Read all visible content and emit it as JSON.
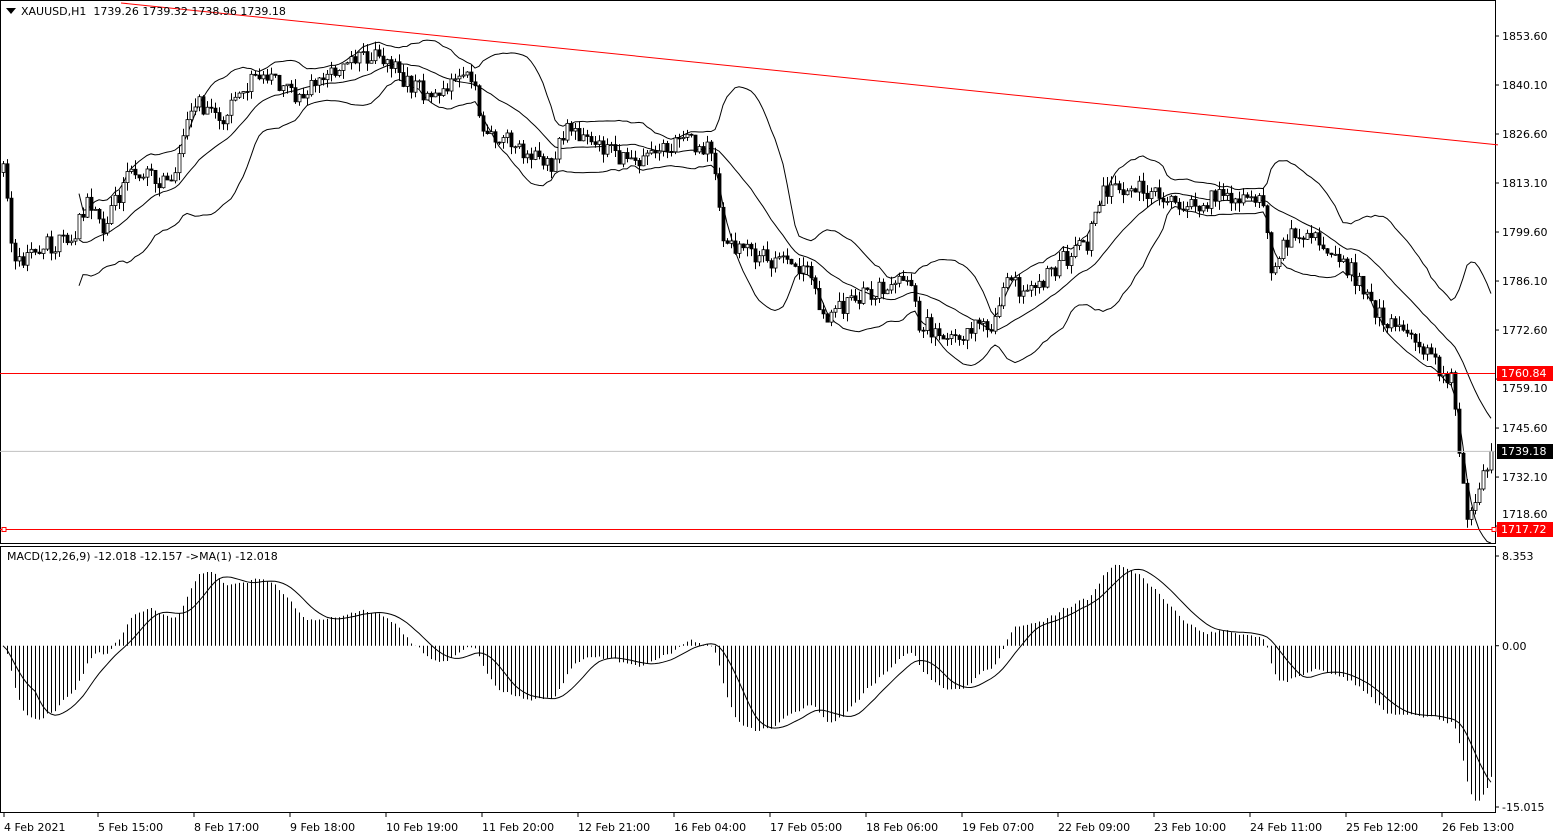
{
  "header": {
    "symbol": "XAUUSD,H1",
    "ohlc": "1739.26 1739.32 1738.96 1739.18"
  },
  "macd_header": {
    "label": "MACD(12,26,9) -12.018 -12.157  ->MA(1) -12.018"
  },
  "colors": {
    "up_body": "#ffffff",
    "down_body": "#000000",
    "candle_outline": "#000000",
    "bands": "#000000",
    "levels": "#ff0000",
    "bid_line": "#c0c0c0",
    "bid_tag": "#000000",
    "level_tag": "#ff0000"
  },
  "chart_data": [
    {
      "type": "candlestick",
      "title": "XAUUSD,H1",
      "timeframe": "H1",
      "indicators": [
        "Bollinger Bands (20,2)"
      ],
      "ylim": [
        1713.5,
        1863.5
      ],
      "y_ticks": [
        "1853.60",
        "1840.10",
        "1826.60",
        "1813.10",
        "1799.60",
        "1786.10",
        "1772.60",
        "1759.10",
        "1745.60",
        "1732.10",
        "1718.60"
      ],
      "x_ticks": [
        "4 Feb 2021",
        "5 Feb 15:00",
        "8 Feb 17:00",
        "9 Feb 18:00",
        "10 Feb 19:00",
        "11 Feb 20:00",
        "12 Feb 21:00",
        "16 Feb 04:00",
        "17 Feb 05:00",
        "18 Feb 06:00",
        "19 Feb 07:00",
        "22 Feb 09:00",
        "23 Feb 10:00",
        "24 Feb 11:00",
        "25 Feb 12:00",
        "26 Feb 13:00"
      ],
      "bars_between_x_ticks": 24,
      "close_path_bar_price": [
        [
          0,
          1816
        ],
        [
          3,
          1790
        ],
        [
          10,
          1796
        ],
        [
          17,
          1797
        ],
        [
          21,
          1808
        ],
        [
          25,
          1801
        ],
        [
          32,
          1817
        ],
        [
          42,
          1813
        ],
        [
          48,
          1836
        ],
        [
          55,
          1831
        ],
        [
          65,
          1845
        ],
        [
          72,
          1837
        ],
        [
          82,
          1843
        ],
        [
          93,
          1849
        ],
        [
          100,
          1842
        ],
        [
          107,
          1837
        ],
        [
          117,
          1843
        ],
        [
          120,
          1828
        ],
        [
          130,
          1822
        ],
        [
          137,
          1818
        ],
        [
          141,
          1828
        ],
        [
          150,
          1822
        ],
        [
          160,
          1819
        ],
        [
          170,
          1825
        ],
        [
          177,
          1822
        ],
        [
          180,
          1797
        ],
        [
          185,
          1795
        ],
        [
          192,
          1792
        ],
        [
          202,
          1789
        ],
        [
          205,
          1775
        ],
        [
          212,
          1781
        ],
        [
          220,
          1784
        ],
        [
          226,
          1786
        ],
        [
          229,
          1775
        ],
        [
          236,
          1770
        ],
        [
          243,
          1774
        ],
        [
          247,
          1771
        ],
        [
          250,
          1786
        ],
        [
          257,
          1783
        ],
        [
          265,
          1792
        ],
        [
          271,
          1797
        ],
        [
          275,
          1811
        ],
        [
          282,
          1812
        ],
        [
          290,
          1810
        ],
        [
          295,
          1806
        ],
        [
          305,
          1810
        ],
        [
          315,
          1807
        ],
        [
          317,
          1789
        ],
        [
          322,
          1800
        ],
        [
          330,
          1797
        ],
        [
          337,
          1789
        ],
        [
          345,
          1775
        ],
        [
          352,
          1771
        ],
        [
          357,
          1764
        ],
        [
          362,
          1759
        ],
        [
          365,
          1731
        ],
        [
          366,
          1719
        ],
        [
          369,
          1728
        ],
        [
          372,
          1739
        ]
      ],
      "horizontal_levels": [
        {
          "price": 1760.84,
          "label": "1760.84"
        },
        {
          "price": 1717.72,
          "label": "1717.72"
        }
      ],
      "bid": {
        "price": 1739.18,
        "label": "1739.18"
      },
      "trendline": {
        "from": [
          29.5,
          1862.7
        ],
        "to": [
          373.75,
          1823.6
        ]
      }
    },
    {
      "type": "bar",
      "title": "MACD(12,26,9)",
      "values_shown": {
        "macd": -12.018,
        "signal": -12.157,
        "ma1": -12.018
      },
      "ylim": [
        -15.015,
        8.353
      ],
      "y_ticks": [
        "8.353",
        "0.00",
        "-15.015"
      ]
    }
  ]
}
